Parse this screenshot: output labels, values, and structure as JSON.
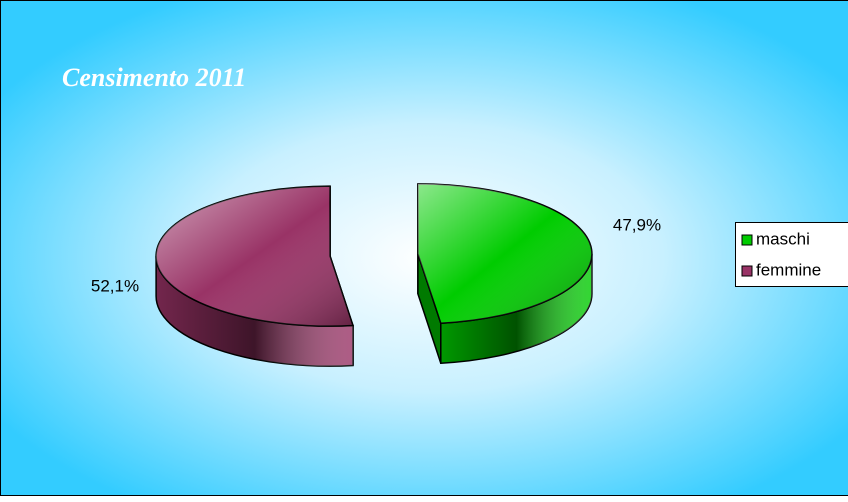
{
  "chart_data": {
    "type": "pie",
    "title": "Censimento 2011",
    "categories": [
      "maschi",
      "femmine"
    ],
    "values": [
      47.9,
      52.1
    ],
    "value_labels": [
      "47,9%",
      "52,1%"
    ],
    "colors": [
      "#00cc00",
      "#993366"
    ],
    "legend": "right"
  }
}
